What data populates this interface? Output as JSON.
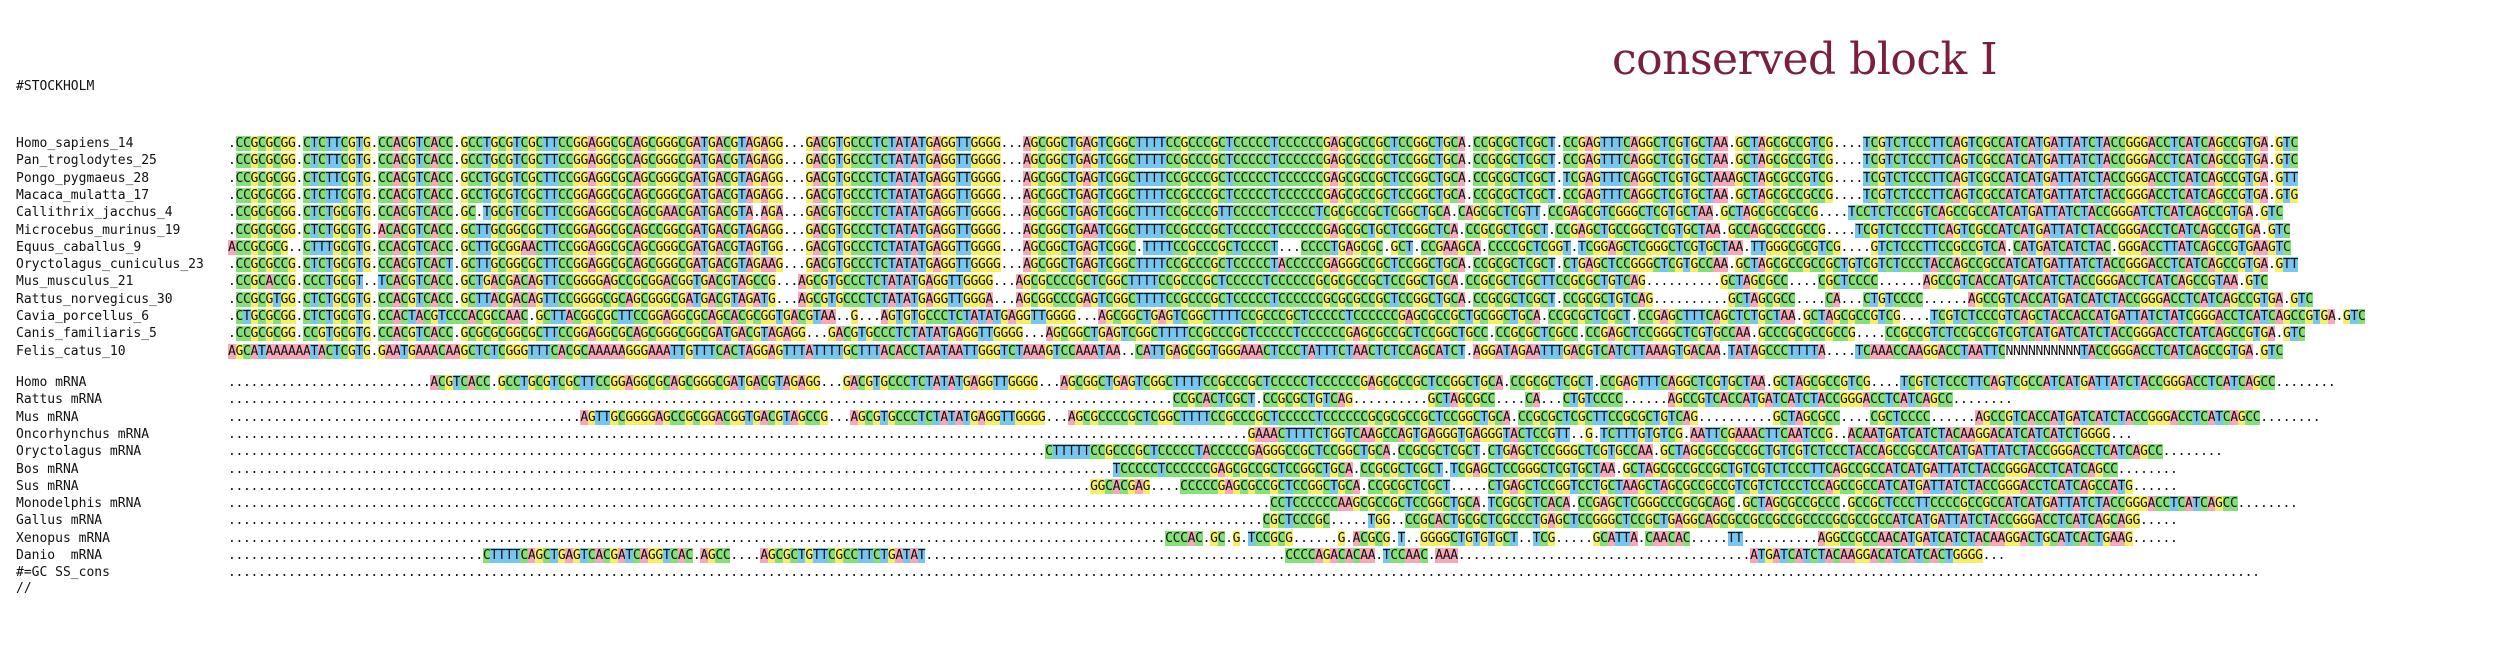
{
  "title": "conserved block I",
  "format_header": "#STOCKHOLM",
  "terminator": "//",
  "colors": {
    "A": "#f6a8b8",
    "C": "#86e07a",
    "G": "#f7ef62",
    "T": "#76c6f0",
    "U": "#76c6f0",
    "title": "#7b1f3e"
  },
  "genomic": [
    {
      "name": "Homo_sapiens_14",
      "seq": ".CCGCGCGG.CTCTTCGTG.CCACGTCACC.GCCTGCGTCGCTTCCGGAGGCGCAGCGGGCGATGACGTAGAGG...GACGTGCCCTCTATATGAGGTTGGGG...AGCGGCTGAGTCGGCTTTTCCGCCCGCTCCCCCTCCCCCCGAGCGCCGCTCCGGCTGCA.CCGCGCTCGCT.CCGAGTTTCAGGCTCGTGCTAA.GCTAGCGCCGTCG....TCGTCTCCCTTCAGTCGCCATCATGATTATCTACCGGGACCTCATCAGCCGTGA.GTC"
    },
    {
      "name": "Pan_troglodytes_25",
      "seq": ".CCGCGCGG.CTCTTCGTG.CCACGTCACC.GCCTGCGTCGCTTCCGGAGGCGCAGCGGGCGATGACGTAGAGG...GACGTGCCCTCTATATGAGGTTGGGG...AGCGGCTGAGTCGGCTTTTCCGCCCGCTCCCCCTCCCCCCGAGCGCCGCTCCGGCTGCA.CCGCGCTCGCT.CCGAGTTTCAGGCTCGTGCTAA.GCTAGCGCCGTCG....TCGTCTCCCTTCAGTCGCCATCATGATTATCTACCGGGACCTCATCAGCCGTGA.GTC"
    },
    {
      "name": "Pongo_pygmaeus_28",
      "seq": ".CCGCGCGG.CTCTTCGTG.CCACGTCACC.GCCTGCGTCGCTTCCGGAGGCGCAGCGGGCGATGACGTAGAGG...GACGTGCCCTCTATATGAGGTTGGGG...AGCGGCTGAGTCGGCTTTTCCGCCCGCTCCCCCTCCCCCCGAGCGCCGCTCCGGCTGCA.CCGCGCTCGCT.TCGAGTTTCAGGCTCGTGCTAAAGCTAGCGCCGTCG....TCGTCTCCCTTCAGTCGCCATCATGATTATCTACCGGGACCTCATCAGCCGTGA.GTT"
    },
    {
      "name": "Macaca_mulatta_17",
      "seq": ".CCGCGCGG.CTCTTCGTG.CCACGTCACC.GCCTGCGTCGCTTCCGGAGGCGCAGCGGGCGATGACGTAGAGG...GACGTGCCCTCTATATGAGGTTGGGG...AGCGGCTGAGTCGGCTTTTCCGCCCGCTCCCCCTCCCCCCGAGCGCCGCTCCGGCTGCA.CCGCGCTCGCT.CCGAGTTTCAGGCTCGTGCTAA.GCTAGCGCCGCCG....TCGTCTCCCTTCAGTCGCCATCATGATTATCTACCGGGACCTCATCAGCCGTGA.GTG"
    },
    {
      "name": "Callithrix_jacchus_4",
      "seq": ".CCGCGCGG.CTCTGCGTG.CCACGTCACC.GC.TGCGTCGCTTCCGGAGGCGCAGCGAACGATGACGTA.AGA...GACGTGCCCTCTATATGAGGTTGGGG...AGCGGCTGAGTCGGCTTTTCCGCCCGTTCCCCCTCCCCCTCGCGCCGCTCGGCTGCA.CAGCGCTCGTT.CCGAGCGTCGGGCTCGTGCTAA.GCTAGCGCCGCCG....TCCTCTCCCGTCAGCCGCCATCATGATTATCTACCGGGATCTCATCAGCCGTGA.GTC"
    },
    {
      "name": "Microcebus_murinus_19",
      "seq": ".CCGCGCGG.CTCTGCGTG.ACACGTCACC.GCTTGCGGCGCTTCCGGAGGCGCAGCCGGCGATGACGTAGAGG...GACGTGCCCTCTATATGAGGTTGGGG...AGCGGCTGAATCGGCTTTTCCGCCCGCTCCCCCTCCCCCCGAGCGCTGCTCCGGCTCA.CCGCGCTCGCT.CCGAGCTGCCGGCTCGTGCTAA.GCCAGCGCCGCCG....TCGTCTCCCTTCAGTCGCCATCATGATTATCTACCGGGACCTCATCAGCCGTGA.GTC"
    },
    {
      "name": "Equus_caballus_9",
      "seq": "ACCGCGCG..CTTTGCGTG.CCACGTCACC.GCTTGCGGAACTTCCGGAGGCGCAGCGGGCGATGACGTAGTGG...GACGTGCCCTCTATATGAGGTTGGGG...AGCGGCTGAGTCGGC.TTTTCCGCCCGCTCCCCT...CCCCTGAGCGC.GCT.CCGAAGCA.CCCCGCTCGGT.TCGGAGCTCGGGCTCGTGCTAA.TTGGGCGCGTCG....GTCTCCCTTCCGCCGTCA.CATGATCATCTAC.GGGACCTTATCAGCCGTGAAGTC"
    },
    {
      "name": "Oryctolagus_cuniculus_23",
      "seq": ".CCGCGCCG.CTCTGCGTG.CCACGTCACT.GCTTGCGGCGCTTCCGGAGGCGCAGCGGGCGATGACGTAGAAG...GACGTGCCCTCTATATGAGGTTGGGG...AGCGGCTGAGTCGGCTTTTCCGCCCGCTCCCCCTACCCCCGAGGGCCGCTCCGGCTGCA.CCGCGCTCGCT.CTGAGCTCCGGGCTCGTGCCAA.GCTAGCGCCGCCGCTGTCGTCTCCCTACCAGCCGCCATCATGATTATCTACCGGGACCTCATCAGCCGTGA.GTT"
    },
    {
      "name": "Mus_musculus_21",
      "seq": ".CCGCACCG.CCCTGCGT..TCACGTCACC.GCTGACGACAGTTCCGGGGAGCCGCGGACGGTGACGTAGCCG...AGCGTGCCCTCTATATGAGGTTGGGG...AGCGCCCCGCTCGGCTTTTCCGCCCGCTCCCCCTCCCCCCGCGCGCCGCTCCGGCTGCA.CCGCGCTCGCTTCCGCGCTGTCAG..........GCTAGCGCC....CGCTCCCC......AGCCGTCACCATGATCATCTACCGGGACCTCATCAGCCGTAA.GTC"
    },
    {
      "name": "Rattus_norvegicus_30",
      "seq": ".CCGCGTGG.CTCTGCGTG.CCACGTCACC.GCTTACGACAGTTCCGGGGCGCAGCGGGCGATGACGTAGATG...AGCGTGCCCTCTATATGAGGTTGGGA...AGCGGCCCGAGTCGGCTTTTCCGCCCGCTCCCCCTCCCCCCGCGCGCCGCTCCGGCTGCA.CCGCGCTCGCT.CCGCGCTGTCAG..........GCTAGCGCC....CA...CTGTCCCC......AGCCGTCACCATGATCATCTACCGGGACCTCATCAGCCGTGA.GTC"
    },
    {
      "name": "Cavia_porcellus_6",
      "seq": ".CTGCGCGG.CTCTGCGTG.CCACTACGTCCCACGCCAAC.GCTTACGGCGCTTCCGGAGGCGCAGCACGCGGTGACGTAA..G...AGTGTGCCCTCTATATGAGGTTGGGG...AGCGGCTGAGTCGGCTTTTCCGCCCGCTCCCCCTCCCCCCGAGCGCCGCTGCGGCTGCA.CCGCGCTCGCT.CCGAGCTTTCAGCTCTGCTAA.GCTAGCGCCGTCG....TCGTCTCCCGTCAGCTACCACCATGATTATCTATCGGGACCTCATCAGCCGTGA.GTC"
    },
    {
      "name": "Canis_familiaris_5",
      "seq": ".CCGCGCGG.CCGTGCGTG.CCACGTCACC.GCGCGCGGCGCTTCCGGAGGCGCAGCGGGCGGCGATGACGTAGAGG...GACGTGCCCTCTATATGAGGTTGGGG...AGCGGCTGAGTCGGCTTTTCCGCCCGCTCCCCCTCCCCCCGAGCGCCGCTCCGGCTGCC.CCGCGCTCGCC.CCGAGCTCCGGGCTCGTGCCAA.GCCCGCGCCGCCG....CCGCCGTCTCCGCCGTCGTCATGATCATCTACCGGGACCTCATCAGCCGTGA.GTC"
    },
    {
      "name": "Felis_catus_10",
      "seq": "AGCATAAAAAATACTCGTG.GAATGAAACAAGCTCTCGGGTTTCACGCAAAAAGGGAAATTGTTTCACTAGGAGTTTATTTTGCTTTACACCTAATAATTGGGTCTAAAGTCCAAATAA..CATTGAGCGGTGGGAAACTCCCTATTTCTAACTCTCCAGCATCT.AGGATAGAATTTGACGTCATCTTAAAGTGACAA.TATAGCCCTTTTA....TCAAACCAAGGACCTAATTCNNNNNNNNNNTACCGGGACCTCATCAGCCGTGA.GTC"
    }
  ],
  "mrna": [
    {
      "name": "Homo mRNA",
      "seq": "...........................ACGTCACC.GCCTGCGTCGCTTCCGGAGGCGCAGCGGGCGATGACGTAGAGG...GACGTGCCCTCTATATGAGGTTGGGG...AGCGGCTGAGTCGGCTTTTCCGCCCGCTCCCCCTCCCCCCGAGCGCCGCTCCGGCTGCA.CCGCGCTCGCT.CCGAGTTTCAGGCTCGTGCTAA.GCTAGCGCCGTCG....TCGTCTCCCTTCAGTCGCCATCATGATTATCTACCGGGACCTCATCAGCC........"
    },
    {
      "name": "Rattus mRNA",
      "seq": "..............................................................................................................................CCGCACTCGCT.CCGCGCTGTCAG..........GCTAGCGCC....CA...CTGTCCCC......AGCCGTCACCATGATCATCTACCGGGACCTCATCAGCC........"
    },
    {
      "name": "Mus mRNA",
      "seq": "...............................................AGTTGCGGGGAGCCGCGGACGGTGACGTAGCCG...AGCGTGCCCTCTATATGAGGTTGGGG...AGCGCCCCGCTCGGCTTTTCCGCCCGCTCCCCCTCCCCCCGCGCGCCGCTCCGGCTGCA.CCGCGCTCGCTTCCGCGCTGTCAG..........GCTAGCGCC....CGCTCCCC......AGCCGTCACCATGATCATCTACCGGGACCTCATCAGCC........"
    },
    {
      "name": "Oncorhynchus mRNA",
      "seq": "........................................................................................................................................GAAACTTTTCTGGTCAAGCCAGTGAGGGTGAGGGTACTCCGTT..G.TCTTTGTGTCG.AATTCGAAACTTCAATCCG..ACAATGATCATCTACAAGGACATCATCATCTGGGG..."
    },
    {
      "name": "Oryctolagus mRNA",
      "seq": ".............................................................................................................CTTTTTCCGCCCGCTCCCCCTACCCCCGAGGGCCGCTCCGGCTGCA.CCGCGCTCGCT.CTGAGCTCCGGGCTCGTGCCAA.GCTAGCGCCGCCGCTGTCGTCTCCCTACCAGCCGCCATCATGATTATCTACCGGGACCTCATCAGCC........"
    },
    {
      "name": "Bos mRNA",
      "seq": "......................................................................................................................TCCCCCTCCCCCCGAGCGCCGCTCCGGCTGCA.CCGCGCTCGCT.TCGAGCTCCGGGCTCGTGCTAA.GCTAGCGCCGCCGCTGTCGTCTCCCTTCAGCCGCCATCATGATTATCTACCGGGACCTCATCAGCC........"
    },
    {
      "name": "Sus mRNA",
      "seq": "...................................................................................................................GGCACGAG....CCCCCGAGCGCCGCTCCGGCTGCA.CCGCGCTCGCT.....CTGAGCTCCGGTCCTGCTAAGCTAGCGCCGCCGTCGTCTCCCTCCAGCCGCCATCATGATTATCTACCGGGACCTCATCAGCCATG......"
    },
    {
      "name": "Monodelphis mRNA",
      "seq": "...........................................................................................................................................CCTCCCCCCAAGCGCCGCTCCGGCTGCA.TCGCGCTCACA.CCGAGCTCGGGCCCGCGCAGC.GCTAGCGCCGCCC.GCCGCTCCCTTCCCCGCCGCCATCATGATTATCTACCGGGACCTCATCAGCC........"
    },
    {
      "name": "Gallus mRNA",
      "seq": "..........................................................................................................................................CGCTCCCGC.....TGG..CCGCACTGCGCTCGCCCTGAGCTCCGGGCTCCGCTGAGGCAGCGCCGCCGCCGCCCCGCGCCGCCATCATGATTATCTACCGGGACCTCATCAGCAGG....."
    },
    {
      "name": "Xenopus mRNA",
      "seq": ".............................................................................................................................CCCAC.GC.G.TCCGCG......G.ACGCG.T..GGGGCTGTGTGCT..TCG.....GCATTA.CAACAC.....TT..........AGGCCGCCAACATGATCATCTACAAGGACTGCATCACTGAAG......"
    },
    {
      "name": "Danio  mRNA",
      "seq": "..................................CTTTTCAGCTGAGTCACGATCAGGTCAC.AGCC....AGCGCTGTTCGCCTTCTGATAT................................................CCCCAGACACAA.TCCAAC.AAA.......................................ATGATCATCTACAAGGACATCATCACTGGGG..."
    }
  ],
  "gc_line": {
    "name": "#=GC SS_cons",
    "seq": "..............................................................................................................................................................................................................................................................................."
  }
}
